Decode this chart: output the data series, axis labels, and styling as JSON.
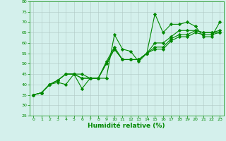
{
  "xlabel": "Humidité relative (%)",
  "ylabel": "",
  "background_color": "#d4f0ec",
  "grid_color": "#b0c8c4",
  "line_color": "#008800",
  "xlim": [
    -0.5,
    23.5
  ],
  "ylim": [
    25,
    80
  ],
  "yticks": [
    25,
    30,
    35,
    40,
    45,
    50,
    55,
    60,
    65,
    70,
    75,
    80
  ],
  "xticks": [
    0,
    1,
    2,
    3,
    4,
    5,
    6,
    7,
    8,
    9,
    10,
    11,
    12,
    13,
    14,
    15,
    16,
    17,
    18,
    19,
    20,
    21,
    22,
    23
  ],
  "series": [
    [
      35,
      36,
      40,
      41,
      40,
      45,
      38,
      43,
      43,
      43,
      64,
      57,
      56,
      51,
      55,
      74,
      65,
      69,
      69,
      70,
      68,
      63,
      63,
      70
    ],
    [
      35,
      36,
      40,
      42,
      45,
      45,
      45,
      43,
      43,
      51,
      58,
      52,
      52,
      52,
      55,
      60,
      60,
      63,
      66,
      66,
      66,
      65,
      65,
      66
    ],
    [
      35,
      36,
      40,
      42,
      45,
      45,
      43,
      43,
      43,
      50,
      57,
      52,
      52,
      52,
      55,
      58,
      58,
      62,
      64,
      64,
      66,
      65,
      65,
      65
    ],
    [
      35,
      36,
      40,
      42,
      45,
      45,
      43,
      43,
      43,
      50,
      57,
      52,
      52,
      52,
      55,
      57,
      57,
      61,
      63,
      63,
      65,
      64,
      64,
      65
    ]
  ],
  "tick_fontsize": 4.5,
  "xlabel_fontsize": 6.5
}
